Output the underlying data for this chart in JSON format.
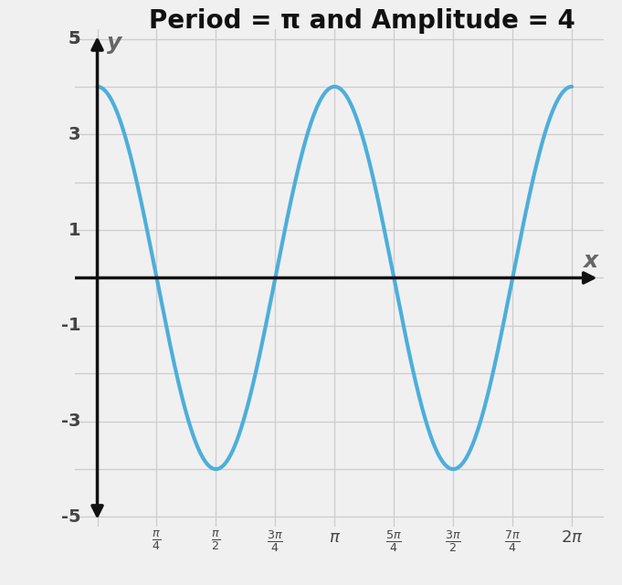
{
  "title": "Period = π and Amplitude = 4",
  "curve_color": "#4DAEDB",
  "curve_linewidth": 3.0,
  "amplitude": 4,
  "frequency": 2,
  "x_start": 0,
  "x_end": 6.283185307179586,
  "xlim": [
    -0.3,
    6.7
  ],
  "ylim": [
    -5.5,
    5.5
  ],
  "plot_xlim": [
    -0.3,
    6.7
  ],
  "plot_ylim": [
    -5.2,
    5.2
  ],
  "grid_color": "#cccccc",
  "axis_color": "#111111",
  "tick_label_color": "#444444",
  "x_label": "x",
  "y_label": "y",
  "background_color": "#f0f0f0",
  "title_fontsize": 20,
  "title_fontweight": "bold",
  "y_ticks": [
    -5,
    -3,
    -1,
    1,
    3,
    5
  ],
  "figsize": [
    6.81,
    6.41
  ],
  "dpi": 100
}
